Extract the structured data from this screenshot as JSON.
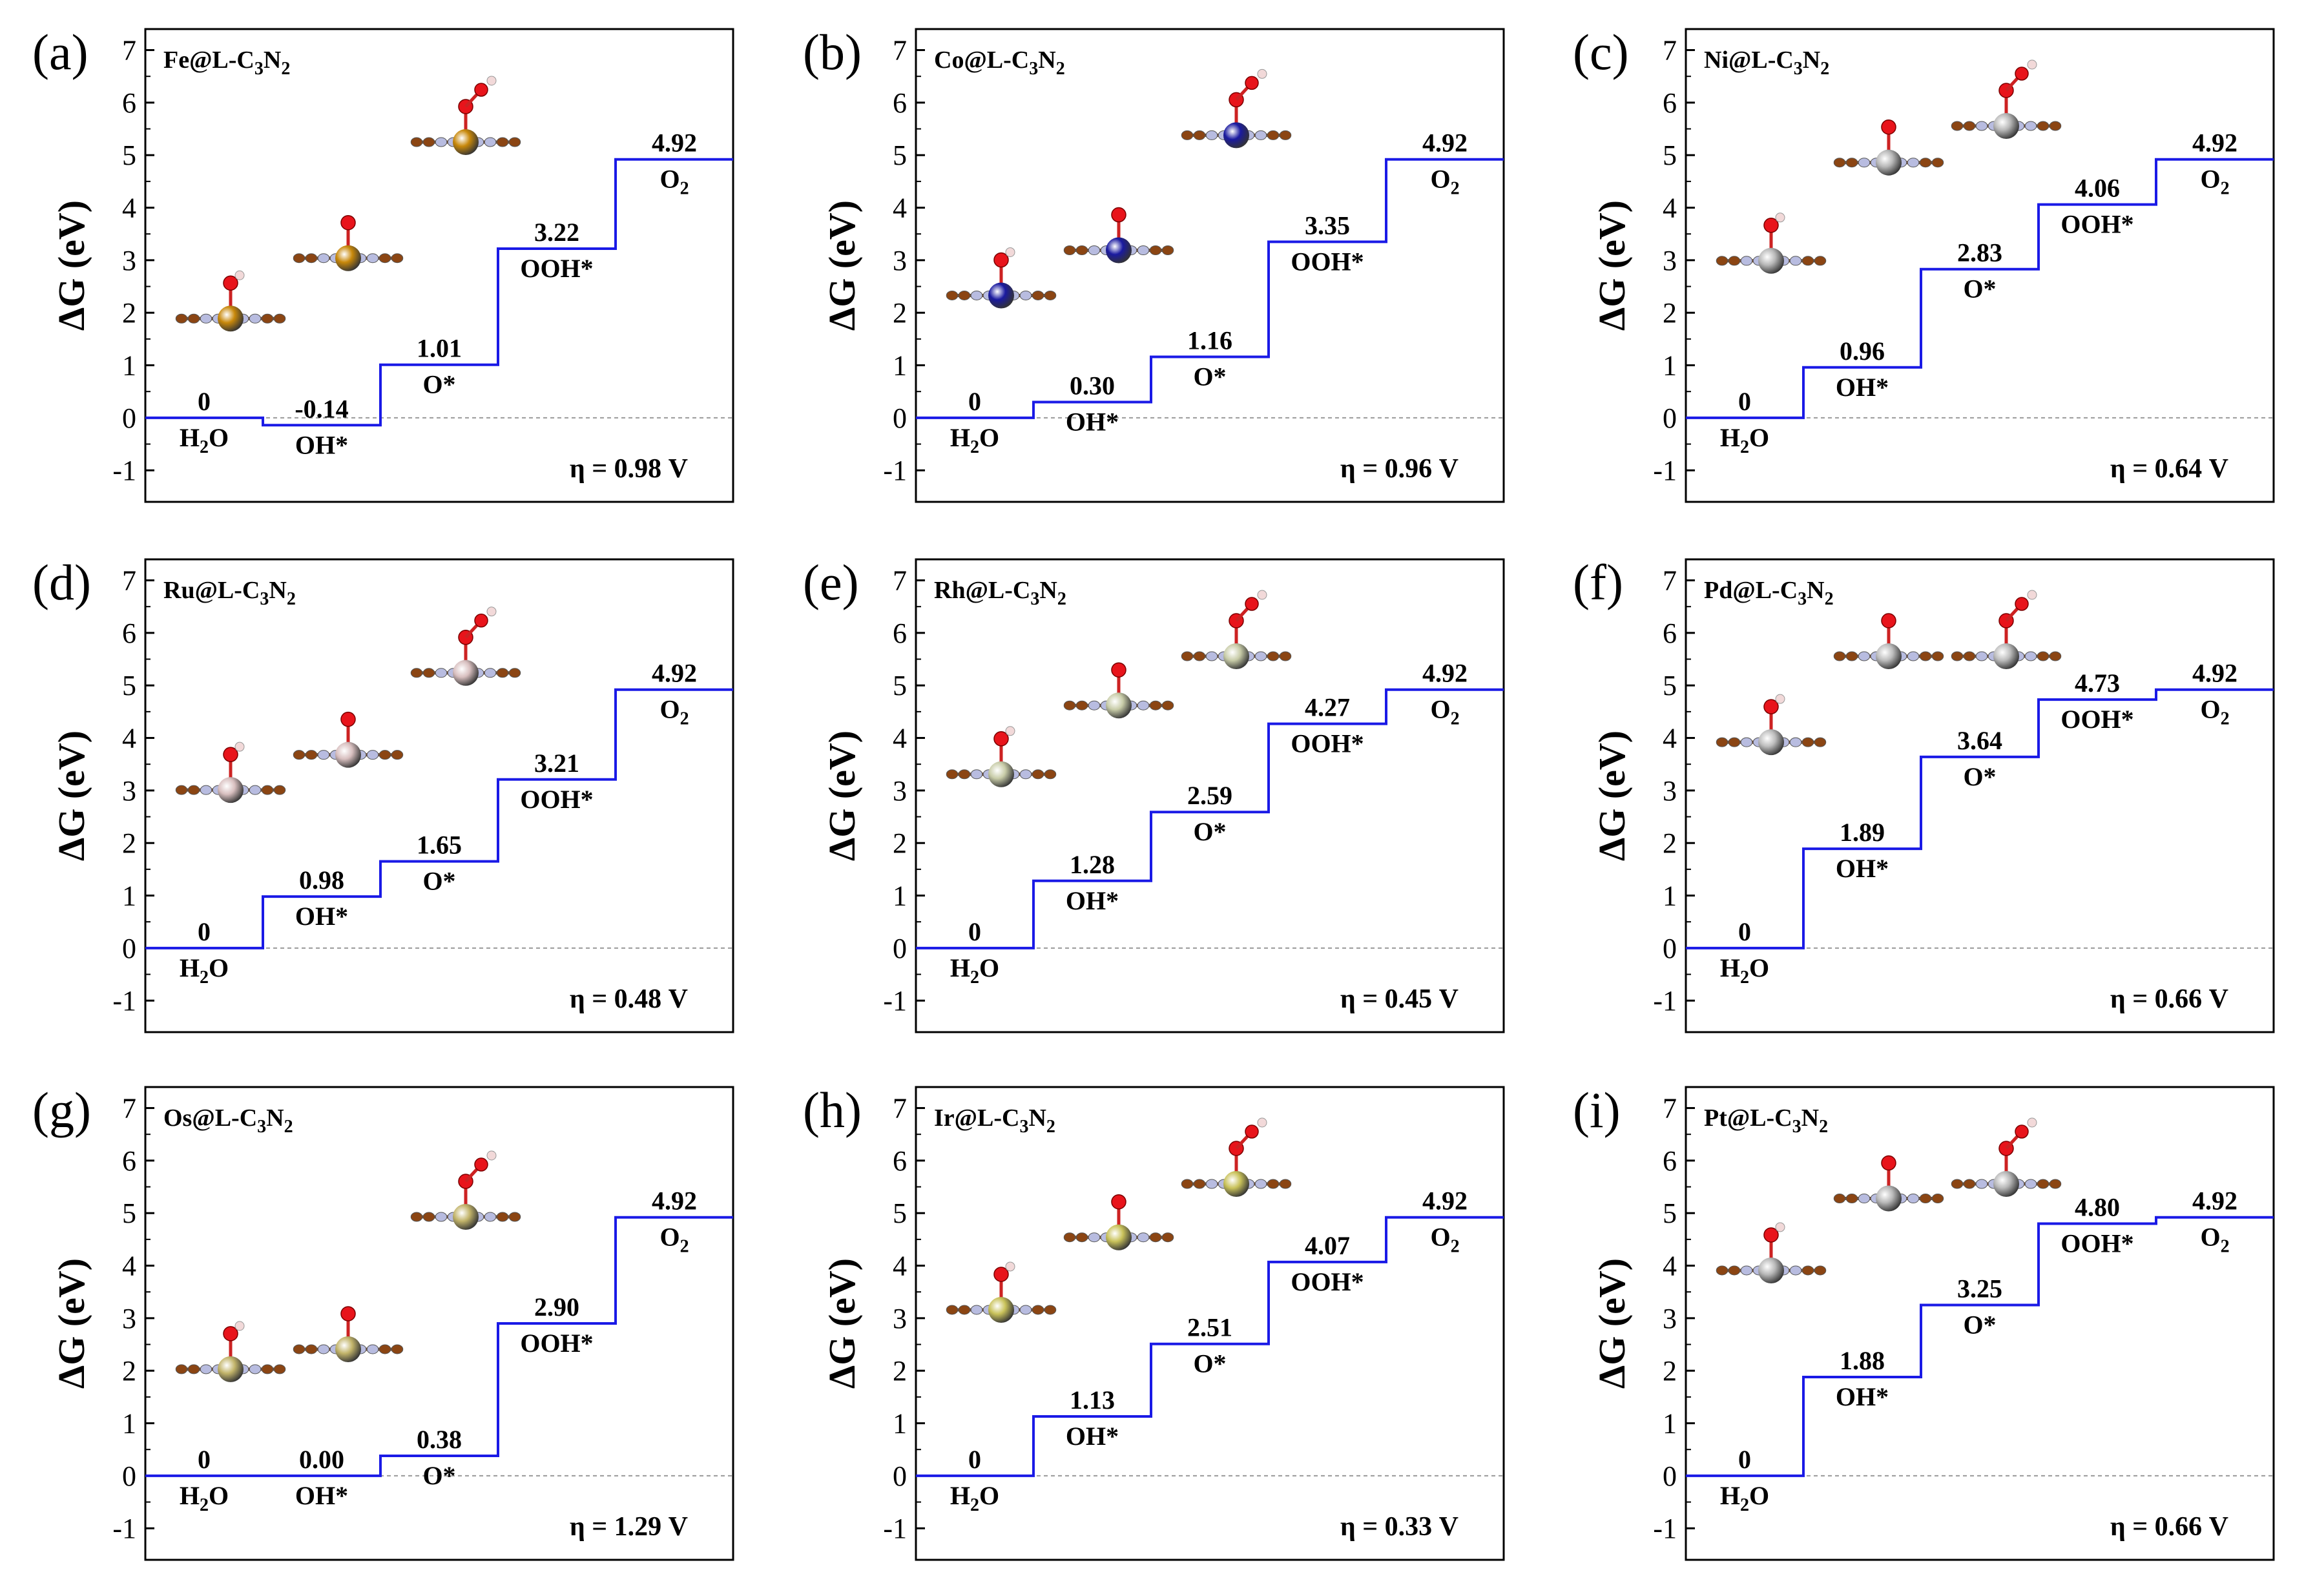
{
  "figure": {
    "y_axis_label": "ΔG (eV)",
    "step_labels": [
      "H2O",
      "OH*",
      "O*",
      "OOH*",
      "O2"
    ],
    "step_names": [
      {
        "base": "H",
        "sub": "2",
        "tail": "O"
      },
      {
        "base": "OH*",
        "sub": "",
        "tail": ""
      },
      {
        "base": "O*",
        "sub": "",
        "tail": ""
      },
      {
        "base": "OOH*",
        "sub": "",
        "tail": ""
      },
      {
        "base": "O",
        "sub": "2",
        "tail": ""
      }
    ],
    "atom_colors": {
      "carbon": "#8B4513",
      "nitrogen": "#B8BCE0",
      "oxygen": "#E8141B",
      "hydrogen": "#F2D9D9"
    },
    "line_color": "#1A1AE6"
  },
  "chart_data": [
    {
      "type": "line",
      "letter": "(a)",
      "metal": "Fe",
      "metal_color": "#C8880A",
      "title": "Fe@L-C3N2",
      "x": [
        "H2O",
        "OH*",
        "O*",
        "OOH*",
        "O2"
      ],
      "y": [
        0,
        -0.14,
        1.01,
        3.22,
        4.92
      ],
      "labels": [
        "0",
        "-0.14",
        "1.01",
        "3.22",
        "4.92"
      ],
      "eta": "η = 0.98 V",
      "ylim": [
        -1.6,
        7.4
      ],
      "yticks": [
        -1,
        0,
        1,
        2,
        3,
        4,
        5,
        6,
        7
      ]
    },
    {
      "type": "line",
      "letter": "(b)",
      "metal": "Co",
      "metal_color": "#1A1AA0",
      "title": "Co@L-C3N2",
      "x": [
        "H2O",
        "OH*",
        "O*",
        "OOH*",
        "O2"
      ],
      "y": [
        0,
        0.3,
        1.16,
        3.35,
        4.92
      ],
      "labels": [
        "0",
        "0.30",
        "1.16",
        "3.35",
        "4.92"
      ],
      "eta": "η = 0.96 V",
      "ylim": [
        -1.6,
        7.4
      ],
      "yticks": [
        -1,
        0,
        1,
        2,
        3,
        4,
        5,
        6,
        7
      ]
    },
    {
      "type": "line",
      "letter": "(c)",
      "metal": "Ni",
      "metal_color": "#B8B8B8",
      "title": "Ni@L-C3N2",
      "x": [
        "H2O",
        "OH*",
        "O*",
        "OOH*",
        "O2"
      ],
      "y": [
        0,
        0.96,
        2.83,
        4.06,
        4.92
      ],
      "labels": [
        "0",
        "0.96",
        "2.83",
        "4.06",
        "4.92"
      ],
      "eta": "η = 0.64 V",
      "ylim": [
        -1.6,
        7.4
      ],
      "yticks": [
        -1,
        0,
        1,
        2,
        3,
        4,
        5,
        6,
        7
      ]
    },
    {
      "type": "line",
      "letter": "(d)",
      "metal": "Ru",
      "metal_color": "#D8BFBF",
      "title": "Ru@L-C3N2",
      "x": [
        "H2O",
        "OH*",
        "O*",
        "OOH*",
        "O2"
      ],
      "y": [
        0,
        0.98,
        1.65,
        3.21,
        4.92
      ],
      "labels": [
        "0",
        "0.98",
        "1.65",
        "3.21",
        "4.92"
      ],
      "eta": "η = 0.48 V",
      "ylim": [
        -1.6,
        7.4
      ],
      "yticks": [
        -1,
        0,
        1,
        2,
        3,
        4,
        5,
        6,
        7
      ]
    },
    {
      "type": "line",
      "letter": "(e)",
      "metal": "Rh",
      "metal_color": "#C8CCA8",
      "title": "Rh@L-C3N2",
      "x": [
        "H2O",
        "OH*",
        "O*",
        "OOH*",
        "O2"
      ],
      "y": [
        0,
        1.28,
        2.59,
        4.27,
        4.92
      ],
      "labels": [
        "0",
        "1.28",
        "2.59",
        "4.27",
        "4.92"
      ],
      "eta": "η = 0.45 V",
      "ylim": [
        -1.6,
        7.4
      ],
      "yticks": [
        -1,
        0,
        1,
        2,
        3,
        4,
        5,
        6,
        7
      ]
    },
    {
      "type": "line",
      "letter": "(f)",
      "metal": "Pd",
      "metal_color": "#BDBDBD",
      "title": "Pd@L-C3N2",
      "x": [
        "H2O",
        "OH*",
        "O*",
        "OOH*",
        "O2"
      ],
      "y": [
        0,
        1.89,
        3.64,
        4.73,
        4.92
      ],
      "labels": [
        "0",
        "1.89",
        "3.64",
        "4.73",
        "4.92"
      ],
      "eta": "η = 0.66 V",
      "ylim": [
        -1.6,
        7.4
      ],
      "yticks": [
        -1,
        0,
        1,
        2,
        3,
        4,
        5,
        6,
        7
      ]
    },
    {
      "type": "line",
      "letter": "(g)",
      "metal": "Os",
      "metal_color": "#C2B46A",
      "title": "Os@L-C3N2",
      "x": [
        "H2O",
        "OH*",
        "O*",
        "OOH*",
        "O2"
      ],
      "y": [
        0,
        0.0,
        0.38,
        2.9,
        4.92
      ],
      "labels": [
        "0",
        "0.00",
        "0.38",
        "2.90",
        "4.92"
      ],
      "eta": "η = 1.29 V",
      "ylim": [
        -1.6,
        7.4
      ],
      "yticks": [
        -1,
        0,
        1,
        2,
        3,
        4,
        5,
        6,
        7
      ]
    },
    {
      "type": "line",
      "letter": "(h)",
      "metal": "Ir",
      "metal_color": "#C9C25A",
      "title": "Ir@L-C3N2",
      "x": [
        "H2O",
        "OH*",
        "O*",
        "OOH*",
        "O2"
      ],
      "y": [
        0,
        1.13,
        2.51,
        4.07,
        4.92
      ],
      "labels": [
        "0",
        "1.13",
        "2.51",
        "4.07",
        "4.92"
      ],
      "eta": "η = 0.33 V",
      "ylim": [
        -1.6,
        7.4
      ],
      "yticks": [
        -1,
        0,
        1,
        2,
        3,
        4,
        5,
        6,
        7
      ]
    },
    {
      "type": "line",
      "letter": "(i)",
      "metal": "Pt",
      "metal_color": "#B8B8B8",
      "title": "Pt@L-C3N2",
      "x": [
        "H2O",
        "OH*",
        "O*",
        "OOH*",
        "O2"
      ],
      "y": [
        0,
        1.88,
        3.25,
        4.8,
        4.92
      ],
      "labels": [
        "0",
        "1.88",
        "3.25",
        "4.80",
        "4.92"
      ],
      "eta": "η = 0.66 V",
      "ylim": [
        -1.6,
        7.4
      ],
      "yticks": [
        -1,
        0,
        1,
        2,
        3,
        4,
        5,
        6,
        7
      ]
    }
  ]
}
